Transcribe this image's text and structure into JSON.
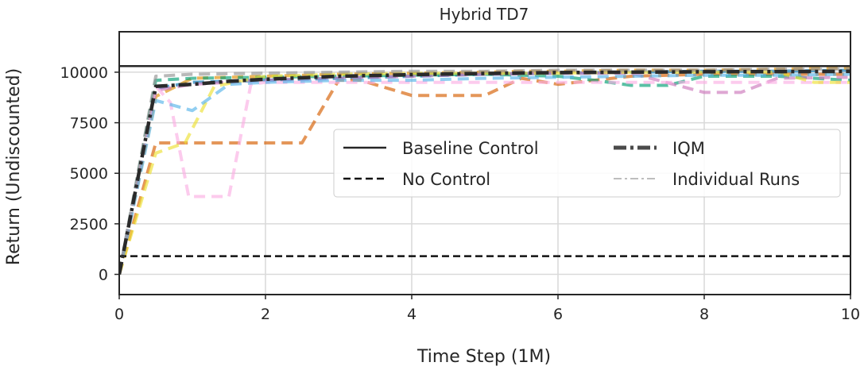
{
  "chart_data": {
    "type": "line",
    "title": "Hybrid TD7",
    "xlabel": "Time Step (1M)",
    "ylabel": "Return (Undiscounted)",
    "xlim": [
      0,
      10
    ],
    "ylim": [
      -1000,
      12000
    ],
    "x_ticks": [
      "0",
      "2",
      "4",
      "6",
      "8",
      "10"
    ],
    "x_tick_values": [
      0,
      2,
      4,
      6,
      8,
      10
    ],
    "y_ticks": [
      "0",
      "2500",
      "5000",
      "7500",
      "10000"
    ],
    "y_tick_values": [
      0,
      2500,
      5000,
      7500,
      10000
    ],
    "grid": true,
    "legend_position": "center-right",
    "legend": [
      {
        "label": "Baseline Control",
        "style": "solid"
      },
      {
        "label": "No Control",
        "style": "dashed"
      },
      {
        "label": "IQM",
        "style": "dashdot-thick"
      },
      {
        "label": "Individual Runs",
        "style": "dashdot-light"
      }
    ],
    "reference_lines": [
      {
        "label": "Baseline Control",
        "y": 10300,
        "color": "#262626",
        "dash": "solid"
      },
      {
        "label": "No Control",
        "y": 900,
        "color": "#111111",
        "dash": "dashed"
      }
    ],
    "iqm": {
      "label": "IQM",
      "color": "#2a2a2a",
      "x": [
        0,
        0.5,
        1,
        1.5,
        2,
        3,
        4,
        5,
        6,
        7,
        8,
        9,
        10
      ],
      "y": [
        0,
        9300,
        9400,
        9550,
        9650,
        9800,
        9880,
        9940,
        9980,
        10000,
        10020,
        10030,
        10040
      ]
    },
    "runs": [
      {
        "color": "#0173b2",
        "x": [
          0,
          0.5,
          1,
          2,
          3,
          4,
          5,
          6,
          7,
          8,
          9,
          10
        ],
        "y": [
          0,
          9200,
          9500,
          9600,
          9700,
          9800,
          9900,
          9950,
          10000,
          10050,
          10050,
          10100
        ]
      },
      {
        "color": "#de8f05",
        "x": [
          0,
          0.5,
          1,
          2,
          3,
          4,
          5,
          5.5,
          6,
          7,
          8,
          9,
          10
        ],
        "y": [
          0,
          8800,
          9700,
          9800,
          9900,
          9950,
          10000,
          10050,
          10050,
          10100,
          10100,
          10150,
          10200
        ]
      },
      {
        "color": "#d55e00",
        "x": [
          0,
          0.5,
          1,
          2.5,
          3,
          3.3,
          4,
          5,
          5.5,
          6,
          7,
          8,
          9,
          10
        ],
        "y": [
          0,
          6500,
          6500,
          6500,
          9600,
          9600,
          8850,
          8850,
          9700,
          9400,
          9800,
          9900,
          9900,
          9900
        ]
      },
      {
        "color": "#029e73",
        "x": [
          0,
          0.5,
          1,
          2,
          3,
          4,
          5,
          6,
          6.5,
          7,
          7.5,
          8,
          9,
          10
        ],
        "y": [
          0,
          9600,
          9700,
          9750,
          9800,
          9850,
          9900,
          9800,
          9600,
          9350,
          9350,
          9800,
          9800,
          9600
        ]
      },
      {
        "color": "#cc78bc",
        "x": [
          0,
          0.5,
          1,
          2,
          3,
          4,
          5,
          6,
          7,
          8,
          8.5,
          9,
          10
        ],
        "y": [
          0,
          9100,
          9400,
          9600,
          9700,
          9800,
          9900,
          9950,
          9950,
          9000,
          9000,
          9700,
          9750
        ]
      },
      {
        "color": "#fbafe4",
        "x": [
          0,
          0.5,
          0.7,
          0.95,
          1.5,
          1.8,
          2,
          3,
          4,
          5,
          6,
          7,
          8,
          9,
          10
        ],
        "y": [
          0,
          9300,
          8500,
          3850,
          3850,
          9400,
          9500,
          9500,
          9500,
          9500,
          9500,
          9500,
          9500,
          9500,
          9500
        ]
      },
      {
        "color": "#ece133",
        "x": [
          0,
          0.5,
          0.9,
          1.3,
          2,
          3,
          4,
          5,
          6,
          7,
          8,
          9,
          9.5,
          10
        ],
        "y": [
          0,
          6000,
          6500,
          9300,
          9800,
          9900,
          9950,
          9950,
          9950,
          10000,
          10000,
          10000,
          9500,
          9500
        ]
      },
      {
        "color": "#56b4e9",
        "x": [
          0,
          0.5,
          1,
          1.5,
          2,
          3,
          4,
          5,
          6,
          7,
          8,
          9,
          10
        ],
        "y": [
          0,
          8600,
          8100,
          9400,
          9500,
          9600,
          9600,
          9700,
          9750,
          9800,
          9850,
          9850,
          9900
        ]
      },
      {
        "color": "#949494",
        "x": [
          0,
          0.5,
          1,
          2,
          3,
          4,
          5,
          6,
          7,
          8,
          9,
          10
        ],
        "y": [
          0,
          9800,
          9900,
          9950,
          10000,
          10050,
          10050,
          10100,
          10100,
          10100,
          10150,
          10150
        ]
      }
    ]
  }
}
